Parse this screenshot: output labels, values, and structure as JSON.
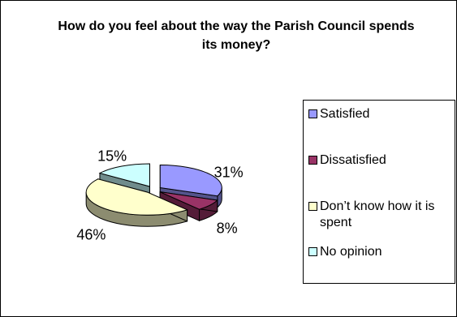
{
  "chart_data": {
    "type": "pie",
    "title": "How do you feel about the way the Parish Council spends its money?",
    "categories": [
      "Satisfied",
      "Dissatisfied",
      "Don't know how it is spent",
      "No opinion"
    ],
    "values": [
      31,
      8,
      46,
      15
    ],
    "labels": [
      "31%",
      "8%",
      "46%",
      "15%"
    ],
    "colors": {
      "Satisfied": "#9999ff",
      "Dissatisfied": "#993366",
      "Don't know how it is spent": "#ffffcc",
      "No opinion": "#ccffff"
    },
    "legend_position": "right",
    "three_d": true
  },
  "legend": {
    "items": [
      {
        "label": "Satisfied"
      },
      {
        "label": "Dissatisfied"
      },
      {
        "label": "Don’t know how it is spent"
      },
      {
        "label": "No opinion"
      }
    ]
  }
}
